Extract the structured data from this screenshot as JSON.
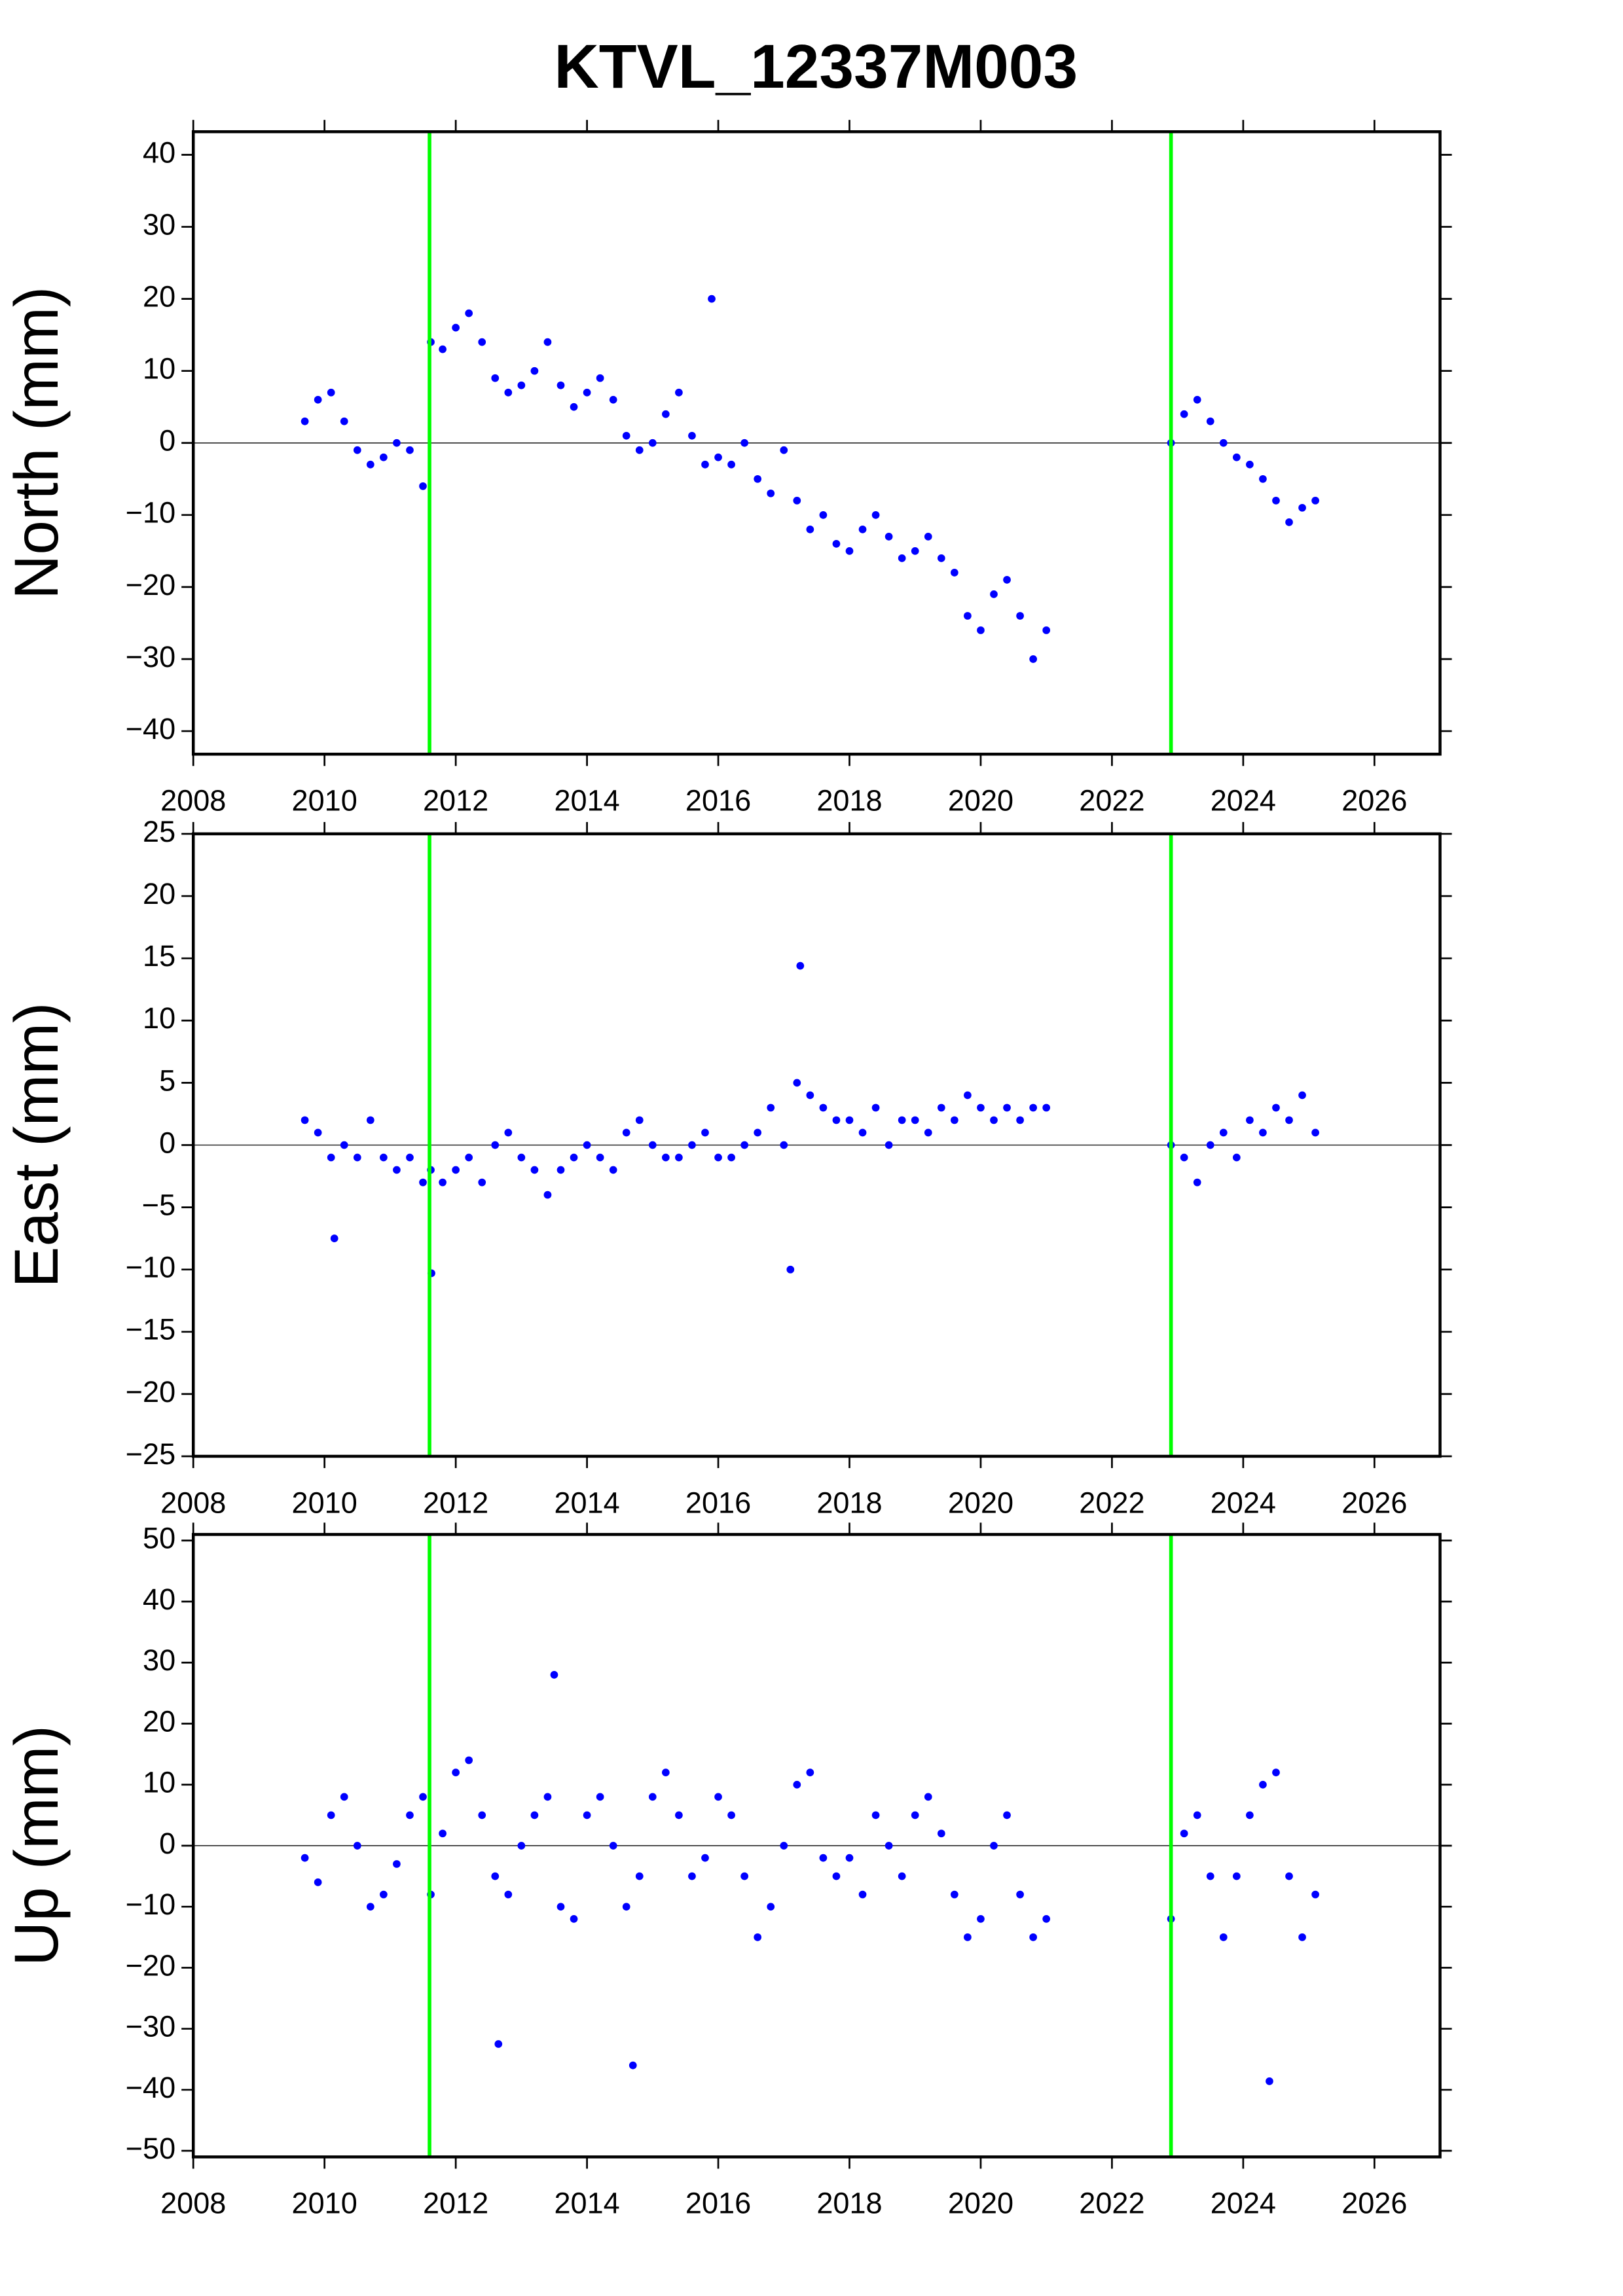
{
  "title": "KTVL_12337M003",
  "chart_data": [
    {
      "type": "scatter",
      "ylabel": "North (mm)",
      "color": "#0000ff",
      "event_color": "#00ff00",
      "events": [
        2011.6,
        2022.9
      ],
      "hline": 0,
      "xlim": [
        2008,
        2027
      ],
      "xticks": [
        2008,
        2010,
        2012,
        2014,
        2016,
        2018,
        2020,
        2022,
        2024,
        2026
      ],
      "ylim": [
        -43.2,
        43.2
      ],
      "yticks": [
        {
          "value": -40,
          "label": "−40"
        },
        {
          "value": -30,
          "label": "−30"
        },
        {
          "value": -20,
          "label": "−20"
        },
        {
          "value": -10,
          "label": "−10"
        },
        0,
        10,
        20,
        30,
        40
      ],
      "x": [
        2009.7,
        2009.9,
        2010.1,
        2010.3,
        2010.5,
        2010.7,
        2010.9,
        2011.1,
        2011.3,
        2011.5,
        2011.62,
        2011.8,
        2012.0,
        2012.2,
        2012.4,
        2012.6,
        2012.8,
        2013.0,
        2013.2,
        2013.4,
        2013.6,
        2013.8,
        2014.0,
        2014.2,
        2014.4,
        2014.6,
        2014.8,
        2015.0,
        2015.2,
        2015.4,
        2015.6,
        2015.8,
        2015.9,
        2016.0,
        2016.2,
        2016.4,
        2016.6,
        2016.8,
        2017.0,
        2017.2,
        2017.4,
        2017.6,
        2017.8,
        2018.0,
        2018.2,
        2018.4,
        2018.6,
        2018.8,
        2019.0,
        2019.2,
        2019.4,
        2019.6,
        2019.8,
        2020.0,
        2020.2,
        2020.4,
        2020.6,
        2020.8,
        2021.0,
        2022.9,
        2023.1,
        2023.3,
        2023.5,
        2023.7,
        2023.9,
        2024.1,
        2024.3,
        2024.5,
        2024.7,
        2024.9,
        2025.1
      ],
      "values": [
        3,
        6,
        7,
        3,
        -1,
        -3,
        -2,
        0,
        -1,
        -6,
        14,
        13,
        16,
        18,
        14,
        9,
        7,
        8,
        10,
        14,
        8,
        5,
        7,
        9,
        6,
        1,
        -1,
        0,
        4,
        7,
        1,
        -3,
        20,
        -2,
        -3,
        0,
        -5,
        -7,
        -1,
        -8,
        -12,
        -10,
        -14,
        -15,
        -12,
        -10,
        -13,
        -16,
        -15,
        -13,
        -16,
        -18,
        -24,
        -26,
        -21,
        -19,
        -24,
        -30,
        -26,
        0,
        4,
        6,
        3,
        0,
        -2,
        -3,
        -5,
        -8,
        -11,
        -9,
        -8
      ]
    },
    {
      "type": "scatter",
      "ylabel": "East (mm)",
      "color": "#0000ff",
      "event_color": "#00ff00",
      "events": [
        2011.6,
        2022.9
      ],
      "hline": 0,
      "xlim": [
        2008,
        2027
      ],
      "xticks": [
        2008,
        2010,
        2012,
        2014,
        2016,
        2018,
        2020,
        2022,
        2024,
        2026
      ],
      "ylim": [
        -25,
        25
      ],
      "yticks": [
        {
          "value": -25,
          "label": "−25"
        },
        {
          "value": -20,
          "label": "−20"
        },
        {
          "value": -15,
          "label": "−15"
        },
        {
          "value": -10,
          "label": "−10"
        },
        {
          "value": -5,
          "label": "−5"
        },
        0,
        5,
        10,
        15,
        20,
        25
      ],
      "x": [
        2009.7,
        2009.9,
        2010.1,
        2010.15,
        2010.3,
        2010.5,
        2010.7,
        2010.9,
        2011.1,
        2011.3,
        2011.5,
        2011.62,
        2011.63,
        2011.8,
        2012.0,
        2012.2,
        2012.4,
        2012.6,
        2012.8,
        2013.0,
        2013.2,
        2013.4,
        2013.6,
        2013.8,
        2014.0,
        2014.2,
        2014.4,
        2014.6,
        2014.8,
        2015.0,
        2015.2,
        2015.4,
        2015.6,
        2015.8,
        2016.0,
        2016.2,
        2016.4,
        2016.6,
        2016.8,
        2017.0,
        2017.1,
        2017.2,
        2017.25,
        2017.4,
        2017.6,
        2017.8,
        2018.0,
        2018.2,
        2018.4,
        2018.6,
        2018.8,
        2019.0,
        2019.2,
        2019.4,
        2019.6,
        2019.8,
        2020.0,
        2020.2,
        2020.4,
        2020.6,
        2020.8,
        2021.0,
        2022.9,
        2023.1,
        2023.3,
        2023.5,
        2023.7,
        2023.9,
        2024.1,
        2024.3,
        2024.5,
        2024.7,
        2024.9,
        2025.1
      ],
      "values": [
        2,
        1,
        -1,
        -7.5,
        0,
        -1,
        2,
        -1,
        -2,
        -1,
        -3,
        -2,
        -10.3,
        -3,
        -2,
        -1,
        -3,
        0,
        1,
        -1,
        -2,
        -4,
        -2,
        -1,
        0,
        -1,
        -2,
        1,
        2,
        0,
        -1,
        -1,
        0,
        1,
        -1,
        -1,
        0,
        1,
        3,
        0,
        -10,
        5,
        14.4,
        4,
        3,
        2,
        2,
        1,
        3,
        0,
        2,
        2,
        1,
        3,
        2,
        4,
        3,
        2,
        3,
        2,
        3,
        3,
        0,
        -1,
        -3,
        0,
        1,
        -1,
        2,
        1,
        3,
        2,
        4,
        1
      ]
    },
    {
      "type": "scatter",
      "ylabel": "Up (mm)",
      "color": "#0000ff",
      "event_color": "#00ff00",
      "events": [
        2011.6,
        2022.9
      ],
      "hline": 0,
      "xlim": [
        2008,
        2027
      ],
      "xticks": [
        2008,
        2010,
        2012,
        2014,
        2016,
        2018,
        2020,
        2022,
        2024,
        2026
      ],
      "ylim": [
        -51,
        51
      ],
      "yticks": [
        {
          "value": -50,
          "label": "−50"
        },
        {
          "value": -40,
          "label": "−40"
        },
        {
          "value": -30,
          "label": "−30"
        },
        {
          "value": -20,
          "label": "−20"
        },
        {
          "value": -10,
          "label": "−10"
        },
        0,
        10,
        20,
        30,
        40,
        50
      ],
      "x": [
        2009.7,
        2009.9,
        2010.1,
        2010.3,
        2010.5,
        2010.7,
        2010.9,
        2011.1,
        2011.3,
        2011.5,
        2011.62,
        2011.8,
        2012.0,
        2012.2,
        2012.4,
        2012.6,
        2012.65,
        2012.8,
        2013.0,
        2013.2,
        2013.4,
        2013.5,
        2013.6,
        2013.8,
        2014.0,
        2014.2,
        2014.4,
        2014.6,
        2014.7,
        2014.8,
        2015.0,
        2015.2,
        2015.4,
        2015.6,
        2015.8,
        2016.0,
        2016.2,
        2016.4,
        2016.6,
        2016.8,
        2017.0,
        2017.2,
        2017.4,
        2017.6,
        2017.8,
        2018.0,
        2018.2,
        2018.4,
        2018.6,
        2018.8,
        2019.0,
        2019.2,
        2019.4,
        2019.6,
        2019.8,
        2020.0,
        2020.2,
        2020.4,
        2020.6,
        2020.8,
        2021.0,
        2022.9,
        2023.1,
        2023.3,
        2023.5,
        2023.7,
        2023.9,
        2024.1,
        2024.3,
        2024.4,
        2024.5,
        2024.7,
        2024.9,
        2025.1
      ],
      "values": [
        -2,
        -6,
        5,
        8,
        0,
        -10,
        -8,
        -3,
        5,
        8,
        -8,
        2,
        12,
        14,
        5,
        -5,
        -32.5,
        -8,
        0,
        5,
        8,
        28,
        -10,
        -12,
        5,
        8,
        0,
        -10,
        -36,
        -5,
        8,
        12,
        5,
        -5,
        -2,
        8,
        5,
        -5,
        -15,
        -10,
        0,
        10,
        12,
        -2,
        -5,
        -2,
        -8,
        5,
        0,
        -5,
        5,
        8,
        2,
        -8,
        -15,
        -12,
        0,
        5,
        -8,
        -15,
        -12,
        -12,
        2,
        5,
        -5,
        -15,
        -5,
        5,
        10,
        -38.6,
        12,
        -5,
        -15,
        -8
      ]
    }
  ]
}
